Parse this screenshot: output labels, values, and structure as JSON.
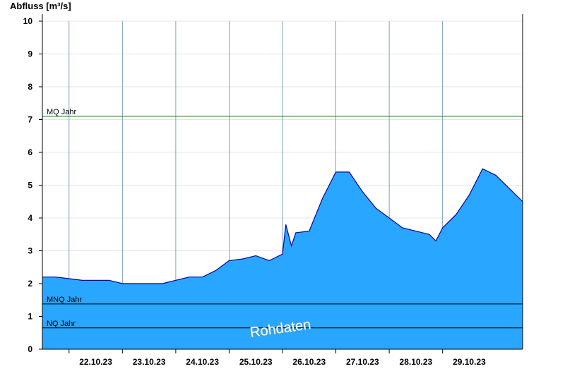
{
  "chart_data": {
    "type": "area",
    "ylabel": "Abfluss [m³/s]",
    "ylim": [
      0,
      10
    ],
    "yticks": [
      "0",
      "1",
      "2",
      "3",
      "4",
      "5",
      "6",
      "7",
      "8",
      "9",
      "10"
    ],
    "x_start": "2023-10-21T12:00",
    "x_end": "2023-10-30T12:00",
    "day_ticks": [
      "22.10.23",
      "23.10.23",
      "24.10.23",
      "25.10.23",
      "26.10.23",
      "27.10.23",
      "28.10.23",
      "29.10.23"
    ],
    "grid": true,
    "fill_color": "#29a6ff",
    "line_color": "#0000aa",
    "series": [
      {
        "values": [
          [
            "2023-10-21T12:00",
            2.2
          ],
          [
            "2023-10-21T18:00",
            2.2
          ],
          [
            "2023-10-22T00:00",
            2.15
          ],
          [
            "2023-10-22T06:00",
            2.1
          ],
          [
            "2023-10-22T12:00",
            2.1
          ],
          [
            "2023-10-22T18:00",
            2.1
          ],
          [
            "2023-10-23T00:00",
            2.0
          ],
          [
            "2023-10-23T06:00",
            2.0
          ],
          [
            "2023-10-23T12:00",
            2.0
          ],
          [
            "2023-10-23T18:00",
            2.0
          ],
          [
            "2023-10-24T00:00",
            2.1
          ],
          [
            "2023-10-24T06:00",
            2.2
          ],
          [
            "2023-10-24T12:00",
            2.2
          ],
          [
            "2023-10-24T18:00",
            2.4
          ],
          [
            "2023-10-25T00:00",
            2.7
          ],
          [
            "2023-10-25T06:00",
            2.75
          ],
          [
            "2023-10-25T12:00",
            2.85
          ],
          [
            "2023-10-25T18:00",
            2.7
          ],
          [
            "2023-10-26T00:00",
            2.9
          ],
          [
            "2023-10-26T01:30",
            3.8
          ],
          [
            "2023-10-26T04:00",
            3.15
          ],
          [
            "2023-10-26T06:00",
            3.55
          ],
          [
            "2023-10-26T12:00",
            3.6
          ],
          [
            "2023-10-26T18:00",
            4.6
          ],
          [
            "2023-10-27T00:00",
            5.4
          ],
          [
            "2023-10-27T06:00",
            5.4
          ],
          [
            "2023-10-27T12:00",
            4.8
          ],
          [
            "2023-10-27T18:00",
            4.3
          ],
          [
            "2023-10-28T00:00",
            4.0
          ],
          [
            "2023-10-28T06:00",
            3.7
          ],
          [
            "2023-10-28T12:00",
            3.6
          ],
          [
            "2023-10-28T18:00",
            3.5
          ],
          [
            "2023-10-28T21:00",
            3.3
          ],
          [
            "2023-10-29T00:00",
            3.7
          ],
          [
            "2023-10-29T06:00",
            4.1
          ],
          [
            "2023-10-29T12:00",
            4.7
          ],
          [
            "2023-10-29T18:00",
            5.5
          ],
          [
            "2023-10-30T00:00",
            5.3
          ],
          [
            "2023-10-30T06:00",
            4.9
          ],
          [
            "2023-10-30T12:00",
            4.5
          ]
        ]
      }
    ],
    "reference_lines": [
      {
        "label": "MQ Jahr",
        "value": 7.1,
        "color": "#008000"
      },
      {
        "label": "MNQ Jahr",
        "value": 1.38,
        "color": "#000000"
      },
      {
        "label": "NQ Jahr",
        "value": 0.65,
        "color": "#000000"
      }
    ],
    "watermark": "Rohdaten"
  }
}
